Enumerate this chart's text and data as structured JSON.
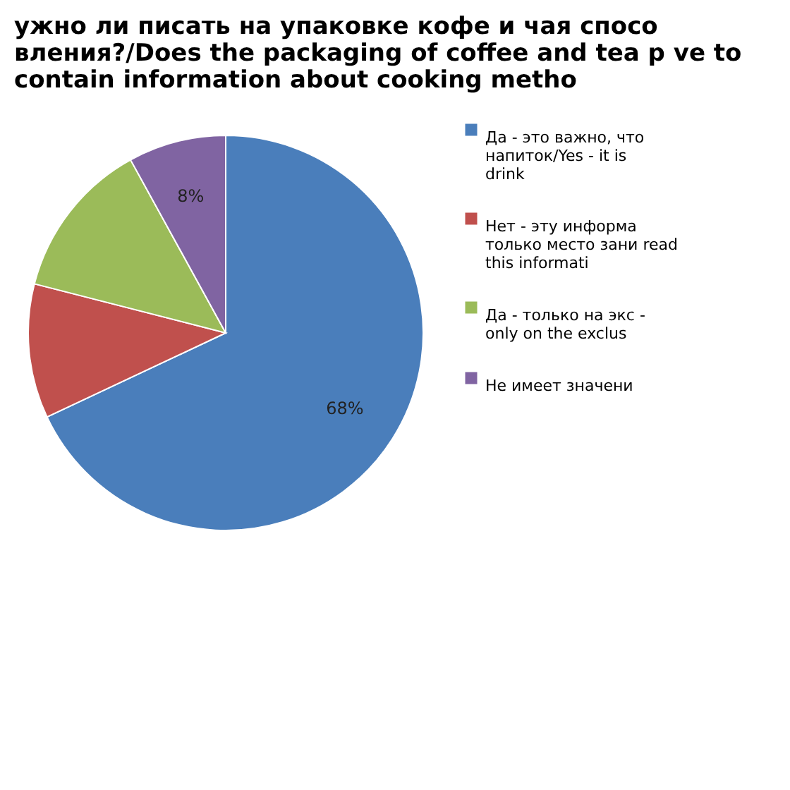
{
  "chart_data": {
    "type": "pie",
    "title": "ужно ли писать на упаковке кофе и чая спосо вления?/Does the packaging of coffee and tea p ve to contain information about cooking metho",
    "categories": [
      "Да - это важно, что напиток/Yes - it is drink",
      "Нет - эту информа только место зани read this informati",
      "Да - только на экс - only on the exclus",
      "Не имеет значени"
    ],
    "values": [
      68,
      11,
      13,
      8
    ],
    "colors": [
      "#4a7ebb",
      "#c0504d",
      "#9bbb59",
      "#8064a2"
    ],
    "value_labels": [
      "68%",
      null,
      null,
      "8%"
    ],
    "legend": "right"
  }
}
